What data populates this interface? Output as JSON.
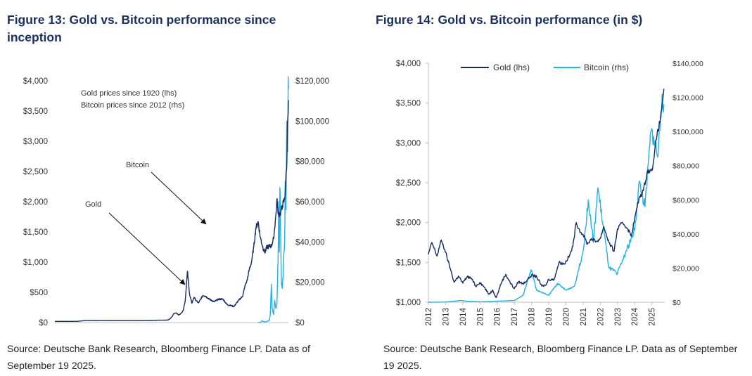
{
  "colors": {
    "title": "#1b2f5c",
    "gold": "#162a63",
    "bitcoin": "#1fb2e6",
    "axis": "#bfbfbf"
  },
  "figures": [
    {
      "title": "Figure 13: Gold vs. Bitcoin performance since inception",
      "source": "Source: Deutsche Bank Research, Bloomberg Finance LP. Data as of September 19 2025."
    },
    {
      "title": "Figure 14: Gold vs. Bitcoin performance (in $)",
      "source": "Source: Deutsche Bank Research, Bloomberg Finance LP. Data as of September 19 2025."
    }
  ],
  "chart_data": [
    {
      "type": "line",
      "title": "Figure 13: Gold vs. Bitcoin performance since inception",
      "annotations": [
        "Gold prices since 1920 (lhs)",
        "Bitcoin prices since 2012 (rhs)",
        "Bitcoin",
        "Gold"
      ],
      "left_axis": {
        "ticks": [
          "$0",
          "$500",
          "$1,000",
          "$1,500",
          "$2,000",
          "$2,500",
          "$3,000",
          "$3,500",
          "$4,000"
        ],
        "ylim": [
          0,
          4000
        ]
      },
      "right_axis": {
        "ticks": [
          "$0",
          "$20,000",
          "$40,000",
          "$60,000",
          "$80,000",
          "$100,000",
          "$120,000"
        ],
        "ylim": [
          0,
          120000
        ]
      },
      "x_range": [
        1920,
        2025.7
      ],
      "series": [
        {
          "name": "Gold",
          "axis": "left",
          "x": [
            1920,
            1930,
            1934,
            1940,
            1950,
            1960,
            1968,
            1971,
            1972,
            1973,
            1974,
            1975,
            1976,
            1977,
            1978,
            1979,
            1980,
            1981,
            1982,
            1983,
            1984,
            1985,
            1987,
            1988,
            1990,
            1992,
            1994,
            1996,
            1998,
            2000,
            2001,
            2003,
            2005,
            2006,
            2007,
            2008,
            2009,
            2010,
            2011,
            2012,
            2013,
            2014,
            2015,
            2016,
            2017,
            2018,
            2019,
            2020,
            2020.6,
            2021,
            2022,
            2023,
            2024,
            2024.5,
            2025,
            2025.3,
            2025.7
          ],
          "y": [
            20,
            20,
            35,
            35,
            35,
            35,
            40,
            41,
            58,
            98,
            155,
            160,
            125,
            148,
            195,
            360,
            850,
            460,
            320,
            420,
            360,
            325,
            450,
            440,
            385,
            345,
            385,
            390,
            295,
            280,
            265,
            360,
            440,
            600,
            700,
            880,
            1000,
            1250,
            1570,
            1670,
            1410,
            1260,
            1160,
            1250,
            1260,
            1270,
            1390,
            1770,
            2050,
            1800,
            1800,
            1940,
            2050,
            2350,
            2650,
            3300,
            3680
          ]
        },
        {
          "name": "Bitcoin",
          "axis": "right",
          "x": [
            2012,
            2013,
            2013.9,
            2014.3,
            2015,
            2016,
            2017,
            2017.5,
            2017.97,
            2018.3,
            2019,
            2019.5,
            2020,
            2020.5,
            2021,
            2021.3,
            2021.6,
            2021.86,
            2022.2,
            2022.5,
            2023,
            2023.5,
            2024,
            2024.25,
            2024.6,
            2024.95,
            2025.1,
            2025.35,
            2025.5,
            2025.6,
            2025.7
          ],
          "y": [
            10,
            100,
            1000,
            500,
            250,
            600,
            1000,
            4000,
            19000,
            7000,
            4000,
            11000,
            7000,
            9500,
            30000,
            60000,
            35000,
            67000,
            42000,
            20000,
            17000,
            30000,
            42000,
            70000,
            56000,
            100000,
            97000,
            85000,
            108000,
            122000,
            116000
          ]
        }
      ]
    },
    {
      "type": "line",
      "title": "Figure 14: Gold vs. Bitcoin performance (in $)",
      "legend_position": "top",
      "x_ticks": [
        "2012",
        "2013",
        "2014",
        "2015",
        "2016",
        "2017",
        "2018",
        "2019",
        "2020",
        "2021",
        "2022",
        "2023",
        "2024",
        "2025"
      ],
      "left_axis": {
        "ticks": [
          "$1,000",
          "$1,500",
          "$2,000",
          "$2,500",
          "$3,000",
          "$3,500",
          "$4,000"
        ],
        "ylim": [
          1000,
          4000
        ]
      },
      "right_axis": {
        "ticks": [
          "$0",
          "$20,000",
          "$40,000",
          "$60,000",
          "$80,000",
          "$100,000",
          "$120,000",
          "$140,000"
        ],
        "ylim": [
          0,
          140000
        ]
      },
      "x_range": [
        2012,
        2025.75
      ],
      "series": [
        {
          "name": "Gold (lhs)",
          "axis": "left",
          "x": [
            2012,
            2012.2,
            2012.5,
            2012.75,
            2012.95,
            2013.3,
            2013.5,
            2013.75,
            2014,
            2014.25,
            2014.5,
            2014.75,
            2015,
            2015.25,
            2015.5,
            2015.75,
            2015.95,
            2016.25,
            2016.5,
            2016.75,
            2017,
            2017.25,
            2017.5,
            2017.75,
            2018,
            2018.3,
            2018.6,
            2018.85,
            2019,
            2019.3,
            2019.6,
            2019.9,
            2020.2,
            2020.4,
            2020.6,
            2020.85,
            2021,
            2021.25,
            2021.5,
            2021.75,
            2022,
            2022.2,
            2022.5,
            2022.8,
            2023,
            2023.3,
            2023.6,
            2023.8,
            2024,
            2024.25,
            2024.5,
            2024.75,
            2025,
            2025.3,
            2025.5,
            2025.7
          ],
          "y": [
            1600,
            1750,
            1580,
            1780,
            1660,
            1400,
            1250,
            1330,
            1240,
            1320,
            1300,
            1200,
            1250,
            1190,
            1100,
            1150,
            1060,
            1250,
            1350,
            1250,
            1170,
            1260,
            1230,
            1280,
            1340,
            1320,
            1200,
            1220,
            1290,
            1280,
            1500,
            1480,
            1580,
            1700,
            2000,
            1880,
            1850,
            1730,
            1800,
            1760,
            1800,
            1950,
            1750,
            1640,
            1920,
            2000,
            1920,
            1830,
            2050,
            2300,
            2400,
            2650,
            2650,
            3100,
            3300,
            3680
          ]
        },
        {
          "name": "Bitcoin (rhs)",
          "axis": "right",
          "x": [
            2012,
            2013,
            2013.9,
            2014.3,
            2015,
            2016,
            2017,
            2017.5,
            2017.97,
            2018.3,
            2019,
            2019.5,
            2020,
            2020.5,
            2021,
            2021.3,
            2021.6,
            2021.86,
            2022.2,
            2022.5,
            2023,
            2023.5,
            2024,
            2024.25,
            2024.6,
            2024.95,
            2025.1,
            2025.35,
            2025.5,
            2025.6,
            2025.7
          ],
          "y": [
            10,
            100,
            1000,
            500,
            250,
            600,
            1000,
            4000,
            19000,
            7000,
            4000,
            11000,
            7000,
            9500,
            30000,
            60000,
            35000,
            67000,
            42000,
            20000,
            17000,
            30000,
            42000,
            70000,
            56000,
            100000,
            97000,
            85000,
            108000,
            122000,
            116000
          ]
        }
      ]
    }
  ]
}
